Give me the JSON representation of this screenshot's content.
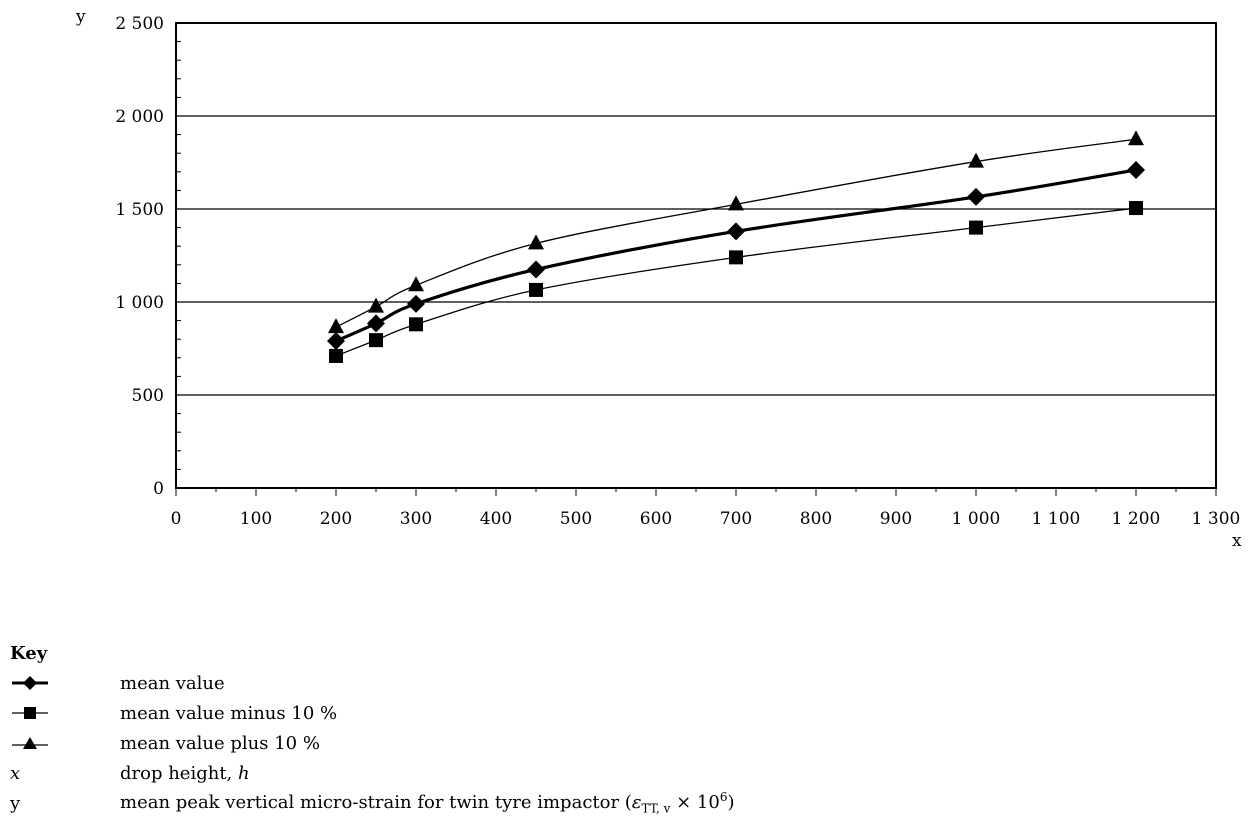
{
  "chart_data": {
    "type": "line",
    "x": [
      200,
      250,
      300,
      450,
      700,
      1000,
      1200
    ],
    "series": [
      {
        "name": "mean value",
        "marker": "diamond",
        "values": [
          790,
          885,
          990,
          1175,
          1380,
          1565,
          1710
        ]
      },
      {
        "name": "mean value minus 10 %",
        "marker": "square",
        "values": [
          710,
          795,
          880,
          1065,
          1240,
          1400,
          1505
        ]
      },
      {
        "name": "mean value plus 10 %",
        "marker": "triangle",
        "values": [
          865,
          975,
          1090,
          1315,
          1525,
          1755,
          1875
        ]
      }
    ],
    "xlabel": "x",
    "ylabel": "y",
    "xlim": [
      0,
      1300
    ],
    "ylim": [
      0,
      2500
    ],
    "x_ticks": [
      "0",
      "100",
      "200",
      "300",
      "400",
      "500",
      "600",
      "700",
      "800",
      "900",
      "1 000",
      "1 100",
      "1 200",
      "1 300"
    ],
    "y_ticks": [
      "0",
      "500",
      "1 000",
      "1 500",
      "2 000",
      "2 500"
    ],
    "y_gridlines": [
      500,
      1000,
      1500,
      2000
    ],
    "grid": true,
    "line_color": "#000000",
    "legend_placement": "below"
  },
  "key": {
    "title": "Key",
    "entries": [
      {
        "symbol": "diamond-thick",
        "label": "mean value"
      },
      {
        "symbol": "square-thin",
        "label": "mean value minus 10 %"
      },
      {
        "symbol": "triangle-thin",
        "label": "mean value plus 10 %"
      }
    ],
    "x_letter": "x",
    "x_desc_text": "drop height, ",
    "x_desc_symbol": "h",
    "y_letter": "y",
    "y_desc_text": "mean peak vertical micro-strain for twin tyre impactor (",
    "y_desc_epsilon": "ε",
    "y_desc_sub": "TT, v",
    "y_desc_times": " × 10",
    "y_desc_exp": "6",
    "y_desc_close": ")"
  }
}
